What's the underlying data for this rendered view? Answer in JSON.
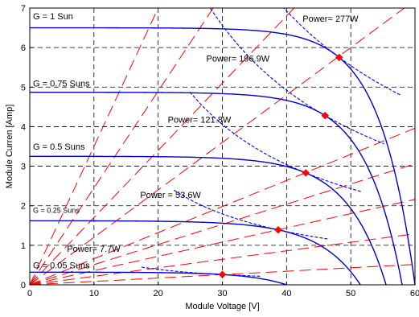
{
  "chart_data": {
    "type": "line",
    "title": "",
    "xlabel": "Module Voltage [V]",
    "ylabel": "Module Curren [Amp]",
    "xlim": [
      0,
      60
    ],
    "ylim": [
      0,
      7
    ],
    "xticks": [
      "0",
      "10",
      "20",
      "30",
      "40",
      "50",
      "60"
    ],
    "yticks": [
      "0",
      "1",
      "2",
      "3",
      "4",
      "5",
      "6",
      "7"
    ],
    "grid": true,
    "colors": {
      "iv": "#0000cc",
      "power": "#0000ff",
      "mpp_line": "#ff0000",
      "mpp_marker": "#ff0000"
    },
    "series": [
      {
        "name": "G = 1 Sun",
        "isc": 6.5,
        "voc": 60.0,
        "mpp_v": 48.2,
        "mpp_i": 5.75,
        "power_label": "Power= 277W",
        "power_w": 277
      },
      {
        "name": "G = 0.75 Suns",
        "isc": 4.87,
        "voc": 58.0,
        "mpp_v": 46.0,
        "mpp_i": 4.28,
        "power_label": "Power= 196.9W",
        "power_w": 196.9
      },
      {
        "name": "G = 0.5 Suns",
        "isc": 3.25,
        "voc": 55.5,
        "mpp_v": 43.0,
        "mpp_i": 2.83,
        "power_label": "Power= 121.8W",
        "power_w": 121.8
      },
      {
        "name": "G = 0.25 Suns",
        "isc": 1.62,
        "voc": 51.5,
        "mpp_v": 38.7,
        "mpp_i": 1.39,
        "power_label": "Power = 53.6W",
        "power_w": 53.6
      },
      {
        "name": "G = 0.05 Suns",
        "isc": 0.32,
        "voc": 40.0,
        "mpp_v": 30.0,
        "mpp_i": 0.26,
        "power_label": "Power= 7.7W",
        "power_w": 7.7
      }
    ],
    "mpp_line_slopes": [
      0.35,
      0.245,
      0.17,
      0.12,
      0.066,
      0.051,
      0.036,
      0.0215,
      0.0086
    ],
    "annotations": [
      {
        "text": "G = 1 Sun",
        "x": 0.5,
        "y": 6.72
      },
      {
        "text": "G = 0.75 Suns",
        "x": 0.5,
        "y": 5.02
      },
      {
        "text": "G = 0.5 Suns",
        "x": 0.5,
        "y": 3.42
      },
      {
        "text": "G = 0.25 Suns",
        "x": 0.5,
        "y": 1.82,
        "small": true
      },
      {
        "text": "G = 0.05 Suns",
        "x": 0.5,
        "y": 0.42
      },
      {
        "text": "Power= 277W",
        "x": 42.5,
        "y": 6.65
      },
      {
        "text": "Power= 196.9W",
        "x": 27.5,
        "y": 5.65
      },
      {
        "text": "Power= 121.8W",
        "x": 21.5,
        "y": 4.1
      },
      {
        "text": "Power = 53.6W",
        "x": 17.2,
        "y": 2.2
      },
      {
        "text": "Power= 7.7W",
        "x": 5.8,
        "y": 0.83
      }
    ]
  }
}
